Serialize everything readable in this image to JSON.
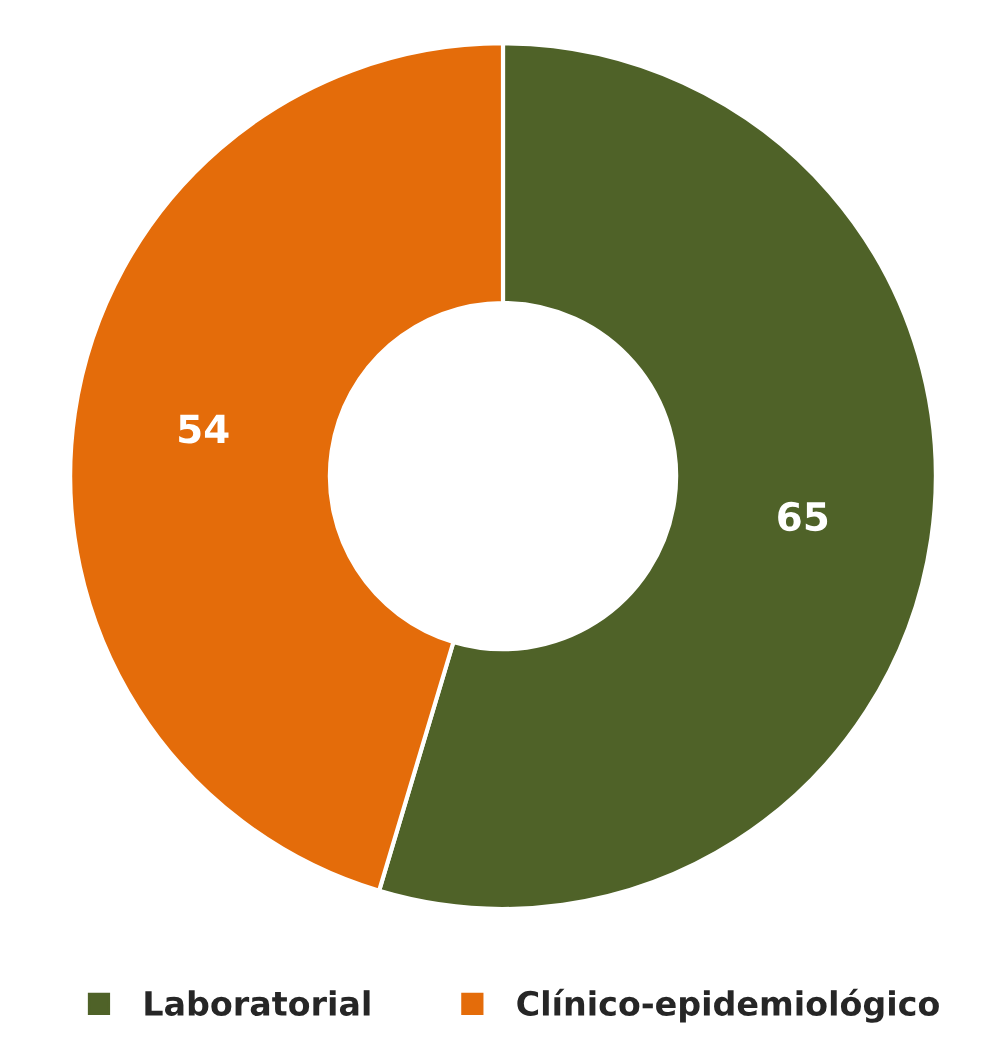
{
  "chart_data": {
    "type": "donut",
    "categories": [
      "Laboratorial",
      "Clínico-epidemiológico"
    ],
    "values": [
      65,
      54
    ],
    "colors": [
      "#4f6228",
      "#e46c0a"
    ],
    "data_labels": true,
    "legend": "bottom"
  }
}
